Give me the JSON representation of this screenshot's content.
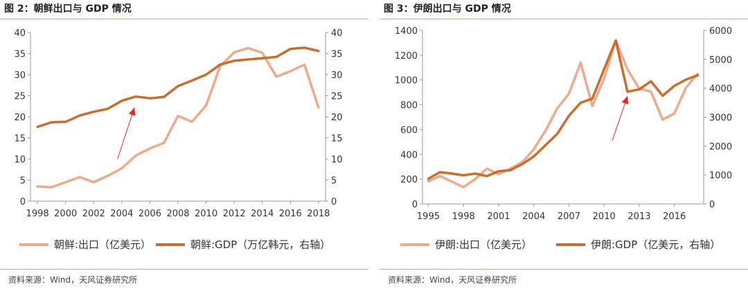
{
  "colors": {
    "light": "#f0a98a",
    "dark": "#cc6c2c",
    "arrow": "#ee2222",
    "axis": "#999999",
    "border": "#c8a77a"
  },
  "charts": [
    {
      "title": "图 2：朝鲜出口与 GDP 情况",
      "source": "资料来源：Wind，天风证券研究所",
      "legend": [
        "朝鲜:出口（亿美元）",
        "朝鲜:GDP（万亿韩元，右轴）"
      ],
      "left_ticks": [
        "0",
        "5",
        "10",
        "15",
        "20",
        "25",
        "30",
        "35",
        "40"
      ],
      "right_ticks": [
        "0",
        "5",
        "10",
        "15",
        "20",
        "25",
        "30",
        "35",
        "40"
      ],
      "x_ticks": [
        "1998",
        "2000",
        "2002",
        "2004",
        "2006",
        "2008",
        "2010",
        "2012",
        "2014",
        "2016",
        "2018"
      ]
    },
    {
      "title": "图 3：伊朗出口与 GDP 情况",
      "source": "资料来源：Wind，天风证券研究所",
      "legend": [
        "伊朗:出口（亿美元）",
        "伊朗:GDP（亿美元，右轴）"
      ],
      "left_ticks": [
        "0",
        "200",
        "400",
        "600",
        "800",
        "1000",
        "1200",
        "1400"
      ],
      "right_ticks": [
        "0",
        "1000",
        "2000",
        "3000",
        "4000",
        "5000",
        "6000"
      ],
      "x_ticks": [
        "1995",
        "1998",
        "2001",
        "2004",
        "2007",
        "2010",
        "2013",
        "2016"
      ]
    }
  ],
  "chart_data": [
    {
      "type": "line",
      "title": "图 2：朝鲜出口与 GDP 情况",
      "x": [
        1998,
        1999,
        2000,
        2001,
        2002,
        2003,
        2004,
        2005,
        2006,
        2007,
        2008,
        2009,
        2010,
        2011,
        2012,
        2013,
        2014,
        2015,
        2016,
        2017,
        2018
      ],
      "xlim": [
        1997.5,
        2018.5
      ],
      "ylim_left": [
        0,
        40
      ],
      "ylim_right": [
        0,
        40
      ],
      "series": [
        {
          "name": "朝鲜:出口（亿美元）",
          "axis": "left",
          "values": [
            3.5,
            3.3,
            4.5,
            5.7,
            4.5,
            6.0,
            7.8,
            10.8,
            12.5,
            13.8,
            20.2,
            18.8,
            22.7,
            32.0,
            35.3,
            36.3,
            35.2,
            29.5,
            30.8,
            32.4,
            22.2
          ]
        },
        {
          "name": "朝鲜:GDP（万亿韩元，右轴）",
          "axis": "right",
          "values": [
            17.6,
            18.7,
            18.8,
            20.3,
            21.2,
            21.9,
            23.8,
            24.8,
            24.4,
            24.7,
            27.3,
            28.6,
            30.0,
            32.4,
            33.3,
            33.6,
            33.9,
            34.2,
            36.1,
            36.4,
            35.6
          ]
        }
      ],
      "annotations": [
        {
          "type": "arrow",
          "from": [
            2003.7,
            10.0
          ],
          "to": [
            2004.9,
            22.2
          ]
        }
      ],
      "grid": false,
      "legend_position": "bottom"
    },
    {
      "type": "line",
      "title": "图 3：伊朗出口与 GDP 情况",
      "x": [
        1995,
        1996,
        1997,
        1998,
        1999,
        2000,
        2001,
        2002,
        2003,
        2004,
        2005,
        2006,
        2007,
        2008,
        2009,
        2010,
        2011,
        2012,
        2013,
        2014,
        2015,
        2016,
        2017,
        2018
      ],
      "xlim": [
        1994.5,
        2018.5
      ],
      "ylim_left": [
        0,
        1400
      ],
      "ylim_right": [
        0,
        6000
      ],
      "series": [
        {
          "name": "伊朗:出口（亿美元）",
          "axis": "left",
          "values": [
            182,
            225,
            180,
            135,
            200,
            285,
            240,
            285,
            335,
            440,
            590,
            770,
            890,
            1140,
            790,
            1010,
            1320,
            1085,
            930,
            905,
            680,
            730,
            940,
            1050
          ]
        },
        {
          "name": "伊朗:GDP（亿美元，右轴）",
          "axis": "right",
          "values": [
            870,
            1100,
            1050,
            990,
            1050,
            960,
            1130,
            1170,
            1370,
            1640,
            2030,
            2420,
            3050,
            3500,
            3640,
            4660,
            5650,
            3880,
            3960,
            4240,
            3740,
            4080,
            4300,
            4450
          ]
        }
      ],
      "annotations": [
        {
          "type": "arrow",
          "from": [
            2010.7,
            510
          ],
          "to": [
            2012.0,
            870
          ]
        }
      ],
      "grid": false,
      "legend_position": "bottom"
    }
  ]
}
